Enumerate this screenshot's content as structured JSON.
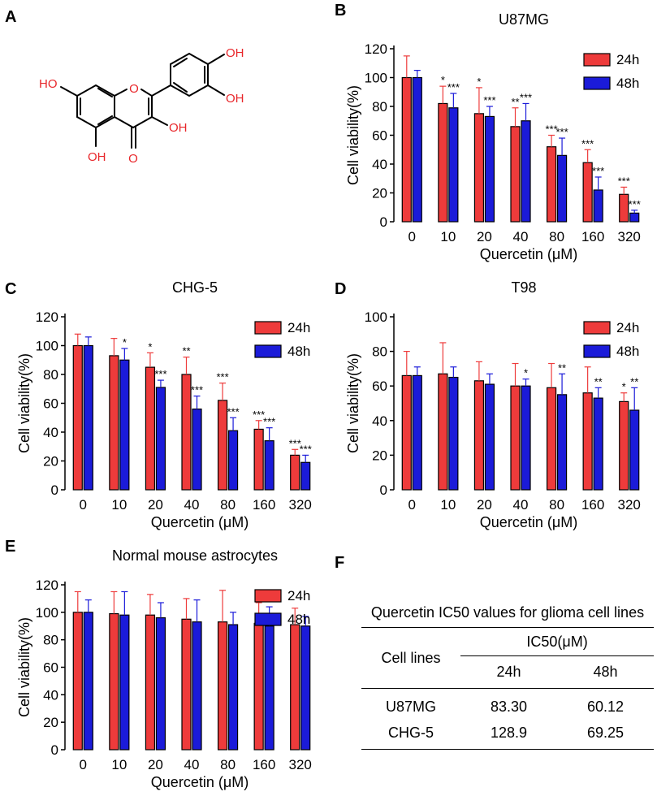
{
  "panels": {
    "A": "A",
    "B": "B",
    "C": "C",
    "D": "D",
    "E": "E",
    "F": "F"
  },
  "structure": {
    "atom_color": "#e8262a",
    "labels": {
      "oh_top": "OH",
      "oh_right": "OH",
      "oh_left": "HO",
      "oh_enol": "OH",
      "oh_bottom": "OH",
      "o_ring": "O",
      "o_carbonyl": "O"
    }
  },
  "colors": {
    "series_24h": "#ee3b3b",
    "series_48h": "#1b1bd9",
    "axis": "#000000"
  },
  "chart_data": [
    {
      "id": "B",
      "type": "bar",
      "title": "U87MG",
      "xlabel": "Quercetin  (μM)",
      "ylabel": "Cell viability(%)",
      "categories": [
        "0",
        "10",
        "20",
        "40",
        "80",
        "160",
        "320"
      ],
      "ylim": [
        0,
        120
      ],
      "yticks": [
        0,
        20,
        40,
        60,
        80,
        100,
        120
      ],
      "series": [
        {
          "name": "24h",
          "values": [
            100,
            82,
            75,
            66,
            52,
            41,
            19
          ],
          "errors": [
            15,
            12,
            18,
            13,
            8,
            9,
            5
          ],
          "sig": [
            "",
            "*",
            "*",
            "**",
            "***",
            "***",
            "***"
          ]
        },
        {
          "name": "48h",
          "values": [
            100,
            79,
            73,
            70,
            46,
            22,
            6
          ],
          "errors": [
            5,
            10,
            7,
            12,
            12,
            9,
            2
          ],
          "sig": [
            "",
            "***",
            "***",
            "***",
            "***",
            "***",
            "***"
          ]
        }
      ]
    },
    {
      "id": "C",
      "type": "bar",
      "title": "CHG-5",
      "xlabel": "Quercetin  (μM)",
      "ylabel": "Cell viability(%)",
      "categories": [
        "0",
        "10",
        "20",
        "40",
        "80",
        "160",
        "320"
      ],
      "ylim": [
        0,
        120
      ],
      "yticks": [
        0,
        20,
        40,
        60,
        80,
        100,
        120
      ],
      "series": [
        {
          "name": "24h",
          "values": [
            100,
            93,
            85,
            80,
            62,
            42,
            24
          ],
          "errors": [
            8,
            12,
            10,
            12,
            12,
            6,
            4
          ],
          "sig": [
            "",
            "",
            "*",
            "**",
            "***",
            "***",
            "***"
          ]
        },
        {
          "name": "48h",
          "values": [
            100,
            90,
            71,
            56,
            41,
            34,
            19
          ],
          "errors": [
            6,
            8,
            5,
            9,
            9,
            9,
            5
          ],
          "sig": [
            "",
            "*",
            "***",
            "***",
            "***",
            "***",
            "***"
          ]
        }
      ]
    },
    {
      "id": "D",
      "type": "bar",
      "title": "T98",
      "xlabel": "Quercetin  (μM)",
      "ylabel": "Cell viability(%)",
      "categories": [
        "0",
        "10",
        "20",
        "40",
        "80",
        "160",
        "320"
      ],
      "ylim": [
        0,
        100
      ],
      "yticks": [
        0,
        20,
        40,
        60,
        80,
        100
      ],
      "series": [
        {
          "name": "24h",
          "values": [
            66,
            67,
            63,
            60,
            59,
            56,
            51
          ],
          "errors": [
            14,
            18,
            11,
            13,
            14,
            15,
            5
          ],
          "sig": [
            "",
            "",
            "",
            "",
            "",
            "",
            "*"
          ]
        },
        {
          "name": "48h",
          "values": [
            66,
            65,
            61,
            60,
            55,
            53,
            46
          ],
          "errors": [
            5,
            6,
            6,
            4,
            12,
            6,
            13
          ],
          "sig": [
            "",
            "",
            "",
            "*",
            "**",
            "**",
            "**"
          ]
        }
      ]
    },
    {
      "id": "E",
      "type": "bar",
      "title": "Normal mouse astrocytes",
      "xlabel": "Quercetin  (μM)",
      "ylabel": "Cell viability(%)",
      "categories": [
        "0",
        "10",
        "20",
        "40",
        "80",
        "160",
        "320"
      ],
      "ylim": [
        0,
        120
      ],
      "yticks": [
        0,
        20,
        40,
        60,
        80,
        100,
        120
      ],
      "series": [
        {
          "name": "24h",
          "values": [
            100,
            99,
            98,
            95,
            93,
            92,
            91
          ],
          "errors": [
            15,
            16,
            15,
            15,
            23,
            15,
            12
          ],
          "sig": [
            "",
            "",
            "",
            "",
            "",
            "",
            ""
          ]
        },
        {
          "name": "48h",
          "values": [
            100,
            98,
            96,
            93,
            91,
            90,
            90
          ],
          "errors": [
            9,
            17,
            11,
            16,
            9,
            14,
            7
          ],
          "sig": [
            "",
            "",
            "",
            "",
            "",
            "",
            ""
          ]
        }
      ]
    }
  ],
  "table": {
    "title": "Quercetin IC50 values for glioma cell lines",
    "col_cell_lines": "Cell lines",
    "col_ic50": "IC50(μM)",
    "col_24h": "24h",
    "col_48h": "48h",
    "rows": [
      {
        "name": "U87MG",
        "v24": "83.30",
        "v48": "60.12"
      },
      {
        "name": "CHG-5",
        "v24": "128.9",
        "v48": "69.25"
      }
    ]
  }
}
